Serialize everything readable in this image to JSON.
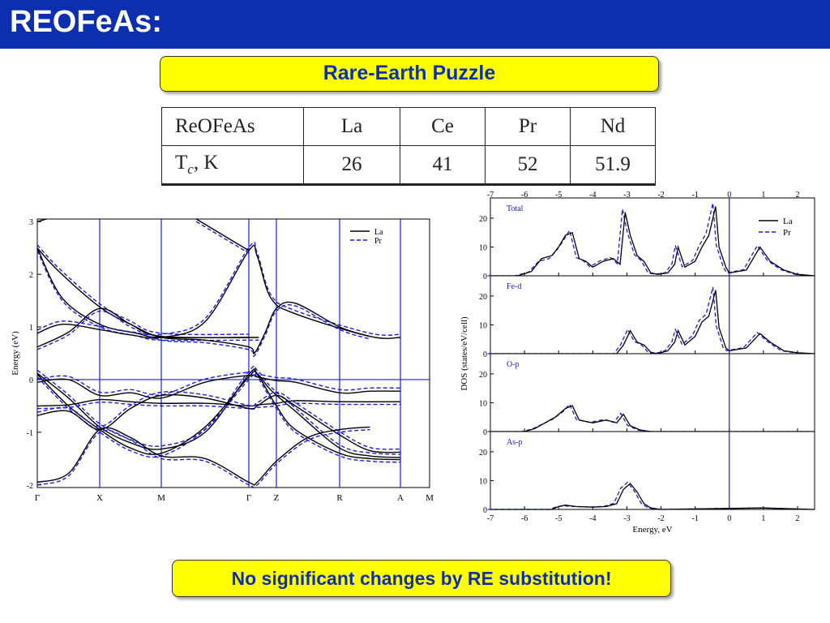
{
  "slide": {
    "title": "REOFeAs:",
    "subtitle": "Rare-Earth Puzzle",
    "conclusion": "No significant changes by RE substitution!",
    "colors": {
      "title_bar": "#0c2fb0",
      "callout_fill": "#ffff00",
      "callout_text": "#0c2fb0"
    }
  },
  "table": {
    "header": [
      "ReOFeAs",
      "La",
      "Ce",
      "Pr",
      "Nd"
    ],
    "row_label": "T",
    "row_label_sub": "c",
    "row_label_unit": ", K",
    "values": [
      "26",
      "41",
      "52",
      "51.9"
    ]
  },
  "chart_data": [
    {
      "type": "line",
      "ylabel": "Energy (eV)",
      "ylim": [
        -2.05,
        3.05
      ],
      "yticks": [
        "3",
        "2",
        "1",
        "0",
        "-1",
        "-2"
      ],
      "kpoints": [
        "Γ",
        "X",
        "M",
        "Γ",
        "Z",
        "R",
        "A",
        "M"
      ],
      "legend": [
        "La",
        "Pr"
      ],
      "legend_position": "top-right",
      "series_colors": {
        "La": "#000000",
        "Pr": "#1a1ae6",
        "guides": "#1a1ae6"
      },
      "series_style": {
        "La": "solid",
        "Pr": "dashed"
      }
    },
    {
      "type": "line",
      "xlabel": "Energy, eV",
      "ylabel": "DOS (states/eV/cell)",
      "xlim": [
        -7,
        2.5
      ],
      "xticks": [
        "-7",
        "-6",
        "-5",
        "-4",
        "-3",
        "-2",
        "-1",
        "0",
        "1",
        "2"
      ],
      "legend": [
        "La",
        "Pr"
      ],
      "legend_position": "top-right",
      "panels": [
        {
          "name": "Total",
          "yticks": [
            "20",
            "10",
            "0"
          ]
        },
        {
          "name": "Fe-d",
          "yticks": [
            "20",
            "10",
            "0"
          ]
        },
        {
          "name": "O-p",
          "yticks": [
            "20",
            "10",
            "0"
          ]
        },
        {
          "name": "As-p",
          "yticks": [
            "20",
            "10",
            "0"
          ]
        }
      ]
    }
  ]
}
